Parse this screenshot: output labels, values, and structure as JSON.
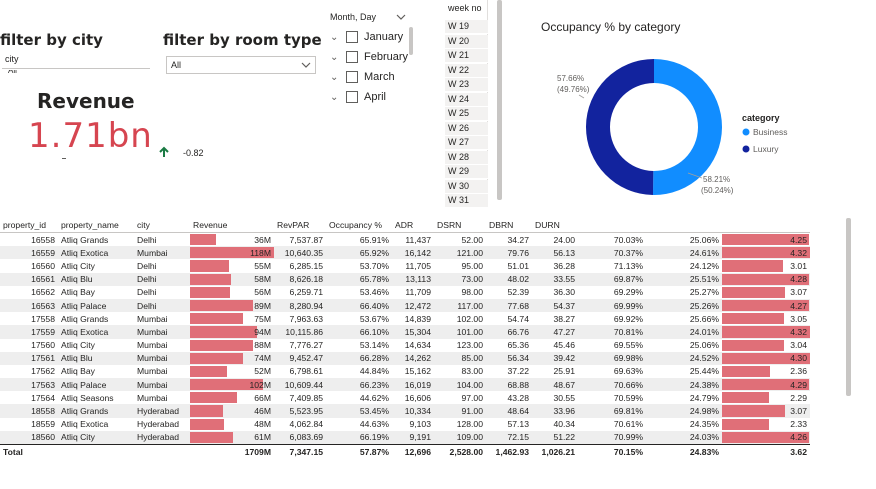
{
  "filters": {
    "city": {
      "title": "filter by city",
      "label": "city",
      "hint": "All"
    },
    "room_type": {
      "title": "filter by room type",
      "value": "All"
    }
  },
  "kpi": {
    "title": "Revenue",
    "value": "1.71bn",
    "delta": "-0.82"
  },
  "month_slicer": {
    "header": "Month, Day",
    "items": [
      "January",
      "February",
      "March",
      "April"
    ]
  },
  "week_slicer": {
    "header": "week no",
    "items": [
      "W 19",
      "W 20",
      "W 21",
      "W 22",
      "W 23",
      "W 24",
      "W 25",
      "W 26",
      "W 27",
      "W 28",
      "W 29",
      "W 30",
      "W 31"
    ]
  },
  "donut": {
    "title": "Occupancy % by category",
    "legend_title": "category",
    "categories": [
      "Business",
      "Luxury"
    ],
    "colors": [
      "#118dff",
      "#12239e"
    ],
    "labels": {
      "luxury_pct": "57.66%",
      "luxury_share": "(49.76%)",
      "business_pct": "58.21%",
      "business_share": "(50.24%)"
    }
  },
  "chart_data": {
    "type": "pie",
    "title": "Occupancy % by category",
    "categories": [
      "Business",
      "Luxury"
    ],
    "values": [
      50.24,
      49.76
    ],
    "data_labels": [
      "58.21% (50.24%)",
      "57.66% (49.76%)"
    ],
    "legend": "right"
  },
  "table": {
    "columns": [
      "property_id",
      "property_name",
      "city",
      "Revenue",
      "RevPAR",
      "Occupancy %",
      "ADR",
      "DSRN",
      "DBRN",
      "DURN",
      "",
      "",
      ""
    ],
    "revenue_max": 118,
    "last_col_max": 4.32,
    "rows": [
      {
        "id": "16558",
        "name": "Atliq Grands",
        "city": "Delhi",
        "rev": "36M",
        "rev_v": 36,
        "revpar": "7,537.87",
        "occ": "65.91%",
        "adr": "11,437",
        "dsrn": "52.00",
        "dbrn": "34.27",
        "durn": "24.00",
        "c1": "70.03%",
        "c2": "25.06%",
        "c3": "4.25",
        "c3_v": 4.25
      },
      {
        "id": "16559",
        "name": "Atliq Exotica",
        "city": "Mumbai",
        "rev": "118M",
        "rev_v": 118,
        "revpar": "10,640.35",
        "occ": "65.92%",
        "adr": "16,142",
        "dsrn": "121.00",
        "dbrn": "79.76",
        "durn": "56.13",
        "c1": "70.37%",
        "c2": "24.61%",
        "c3": "4.32",
        "c3_v": 4.32
      },
      {
        "id": "16560",
        "name": "Atliq City",
        "city": "Delhi",
        "rev": "55M",
        "rev_v": 55,
        "revpar": "6,285.15",
        "occ": "53.70%",
        "adr": "11,705",
        "dsrn": "95.00",
        "dbrn": "51.01",
        "durn": "36.28",
        "c1": "71.13%",
        "c2": "24.12%",
        "c3": "3.01",
        "c3_v": 3.01
      },
      {
        "id": "16561",
        "name": "Atliq Blu",
        "city": "Delhi",
        "rev": "58M",
        "rev_v": 58,
        "revpar": "8,626.18",
        "occ": "65.78%",
        "adr": "13,113",
        "dsrn": "73.00",
        "dbrn": "48.02",
        "durn": "33.55",
        "c1": "69.87%",
        "c2": "25.51%",
        "c3": "4.28",
        "c3_v": 4.28
      },
      {
        "id": "16562",
        "name": "Atliq Bay",
        "city": "Delhi",
        "rev": "56M",
        "rev_v": 56,
        "revpar": "6,259.71",
        "occ": "53.46%",
        "adr": "11,709",
        "dsrn": "98.00",
        "dbrn": "52.39",
        "durn": "36.30",
        "c1": "69.29%",
        "c2": "25.27%",
        "c3": "3.07",
        "c3_v": 3.07
      },
      {
        "id": "16563",
        "name": "Atliq Palace",
        "city": "Delhi",
        "rev": "89M",
        "rev_v": 89,
        "revpar": "8,280.94",
        "occ": "66.40%",
        "adr": "12,472",
        "dsrn": "117.00",
        "dbrn": "77.68",
        "durn": "54.37",
        "c1": "69.99%",
        "c2": "25.26%",
        "c3": "4.27",
        "c3_v": 4.27
      },
      {
        "id": "17558",
        "name": "Atliq Grands",
        "city": "Mumbai",
        "rev": "75M",
        "rev_v": 75,
        "revpar": "7,963.63",
        "occ": "53.67%",
        "adr": "14,839",
        "dsrn": "102.00",
        "dbrn": "54.74",
        "durn": "38.27",
        "c1": "69.92%",
        "c2": "25.66%",
        "c3": "3.05",
        "c3_v": 3.05
      },
      {
        "id": "17559",
        "name": "Atliq Exotica",
        "city": "Mumbai",
        "rev": "94M",
        "rev_v": 94,
        "revpar": "10,115.86",
        "occ": "66.10%",
        "adr": "15,304",
        "dsrn": "101.00",
        "dbrn": "66.76",
        "durn": "47.27",
        "c1": "70.81%",
        "c2": "24.01%",
        "c3": "4.32",
        "c3_v": 4.32
      },
      {
        "id": "17560",
        "name": "Atliq City",
        "city": "Mumbai",
        "rev": "88M",
        "rev_v": 88,
        "revpar": "7,776.27",
        "occ": "53.14%",
        "adr": "14,634",
        "dsrn": "123.00",
        "dbrn": "65.36",
        "durn": "45.46",
        "c1": "69.55%",
        "c2": "25.06%",
        "c3": "3.04",
        "c3_v": 3.04
      },
      {
        "id": "17561",
        "name": "Atliq Blu",
        "city": "Mumbai",
        "rev": "74M",
        "rev_v": 74,
        "revpar": "9,452.47",
        "occ": "66.28%",
        "adr": "14,262",
        "dsrn": "85.00",
        "dbrn": "56.34",
        "durn": "39.42",
        "c1": "69.98%",
        "c2": "24.52%",
        "c3": "4.30",
        "c3_v": 4.3
      },
      {
        "id": "17562",
        "name": "Atliq Bay",
        "city": "Mumbai",
        "rev": "52M",
        "rev_v": 52,
        "revpar": "6,798.61",
        "occ": "44.84%",
        "adr": "15,162",
        "dsrn": "83.00",
        "dbrn": "37.22",
        "durn": "25.91",
        "c1": "69.63%",
        "c2": "25.44%",
        "c3": "2.36",
        "c3_v": 2.36
      },
      {
        "id": "17563",
        "name": "Atliq Palace",
        "city": "Mumbai",
        "rev": "102M",
        "rev_v": 102,
        "revpar": "10,609.44",
        "occ": "66.23%",
        "adr": "16,019",
        "dsrn": "104.00",
        "dbrn": "68.88",
        "durn": "48.67",
        "c1": "70.66%",
        "c2": "24.38%",
        "c3": "4.29",
        "c3_v": 4.29
      },
      {
        "id": "17564",
        "name": "Atliq Seasons",
        "city": "Mumbai",
        "rev": "66M",
        "rev_v": 66,
        "revpar": "7,409.85",
        "occ": "44.62%",
        "adr": "16,606",
        "dsrn": "97.00",
        "dbrn": "43.28",
        "durn": "30.55",
        "c1": "70.59%",
        "c2": "24.79%",
        "c3": "2.29",
        "c3_v": 2.29
      },
      {
        "id": "18558",
        "name": "Atliq Grands",
        "city": "Hyderabad",
        "rev": "46M",
        "rev_v": 46,
        "revpar": "5,523.95",
        "occ": "53.45%",
        "adr": "10,334",
        "dsrn": "91.00",
        "dbrn": "48.64",
        "durn": "33.96",
        "c1": "69.81%",
        "c2": "24.98%",
        "c3": "3.07",
        "c3_v": 3.07
      },
      {
        "id": "18559",
        "name": "Atliq Exotica",
        "city": "Hyderabad",
        "rev": "48M",
        "rev_v": 48,
        "revpar": "4,062.84",
        "occ": "44.63%",
        "adr": "9,103",
        "dsrn": "128.00",
        "dbrn": "57.13",
        "durn": "40.34",
        "c1": "70.61%",
        "c2": "24.35%",
        "c3": "2.33",
        "c3_v": 2.33
      },
      {
        "id": "18560",
        "name": "Atliq City",
        "city": "Hyderabad",
        "rev": "61M",
        "rev_v": 61,
        "revpar": "6,083.69",
        "occ": "66.19%",
        "adr": "9,191",
        "dsrn": "109.00",
        "dbrn": "72.15",
        "durn": "51.22",
        "c1": "70.99%",
        "c2": "24.03%",
        "c3": "4.26",
        "c3_v": 4.26
      }
    ],
    "total": {
      "label": "Total",
      "rev": "1709M",
      "revpar": "7,347.15",
      "occ": "57.87%",
      "adr": "12,696",
      "dsrn": "2,528.00",
      "dbrn": "1,462.93",
      "durn": "1,026.21",
      "c1": "70.15%",
      "c2": "24.83%",
      "c3": "3.62"
    }
  }
}
